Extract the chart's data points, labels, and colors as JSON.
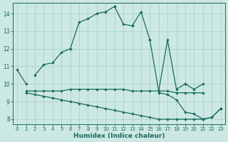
{
  "xlabel": "Humidex (Indice chaleur)",
  "background_color": "#cce8e5",
  "grid_color": "#aed4d0",
  "line_color": "#1a6b5a",
  "xlim": [
    -0.5,
    23.5
  ],
  "ylim": [
    7.7,
    14.6
  ],
  "x_ticks": [
    0,
    1,
    2,
    3,
    4,
    5,
    6,
    7,
    8,
    9,
    10,
    11,
    12,
    13,
    14,
    15,
    16,
    17,
    18,
    19,
    20,
    21,
    22,
    23
  ],
  "y_ticks": [
    8,
    9,
    10,
    11,
    12,
    13,
    14
  ],
  "lines": [
    {
      "segments": [
        {
          "x": [
            0,
            1
          ],
          "y": [
            10.8,
            10.0
          ]
        },
        {
          "x": [
            2,
            3,
            4,
            5,
            6,
            7,
            8,
            9,
            10,
            11
          ],
          "y": [
            10.5,
            11.1,
            11.2,
            11.8,
            12.0,
            13.5,
            13.7,
            14.0,
            14.1,
            14.4
          ]
        },
        {
          "x": [
            11,
            12,
            13
          ],
          "y": [
            14.4,
            13.4,
            13.3
          ]
        },
        {
          "x": [
            13,
            14,
            15
          ],
          "y": [
            13.3,
            14.1,
            12.5
          ]
        }
      ]
    },
    {
      "segments": [
        {
          "x": [
            15,
            16,
            17,
            18,
            19
          ],
          "y": [
            12.5,
            9.6,
            12.5,
            9.7,
            10.0
          ]
        },
        {
          "x": [
            19,
            20,
            21
          ],
          "y": [
            10.0,
            9.7,
            10.0
          ]
        }
      ]
    },
    {
      "segments": [
        {
          "x": [
            1,
            2,
            3,
            4,
            5,
            6,
            7,
            8,
            9,
            10,
            11,
            12,
            13,
            14,
            15,
            16,
            17,
            18,
            19,
            20,
            21
          ],
          "y": [
            9.6,
            9.6,
            9.6,
            9.6,
            9.6,
            9.7,
            9.7,
            9.7,
            9.7,
            9.7,
            9.7,
            9.7,
            9.6,
            9.6,
            9.6,
            9.6,
            9.6,
            9.5,
            9.5,
            9.5,
            9.5
          ]
        }
      ]
    },
    {
      "comment": "declining line from x=1 y=9.5 to x=23 y=8.6",
      "segments": [
        {
          "x": [
            1,
            2,
            3,
            4,
            5,
            6,
            7,
            8,
            9,
            10,
            11,
            12,
            13,
            14,
            15,
            16,
            17,
            18,
            19,
            20,
            21,
            22,
            23
          ],
          "y": [
            9.5,
            9.4,
            9.3,
            9.2,
            9.1,
            9.0,
            8.9,
            8.8,
            8.7,
            8.6,
            8.5,
            8.4,
            8.3,
            8.2,
            8.1,
            8.0,
            8.0,
            8.0,
            8.0,
            8.0,
            8.0,
            8.1,
            8.6
          ]
        }
      ]
    },
    {
      "segments": [
        {
          "x": [
            16,
            17,
            18,
            19,
            20,
            21,
            22,
            23
          ],
          "y": [
            9.5,
            9.4,
            9.1,
            8.4,
            8.3,
            8.0,
            8.1,
            8.6
          ]
        }
      ]
    }
  ]
}
